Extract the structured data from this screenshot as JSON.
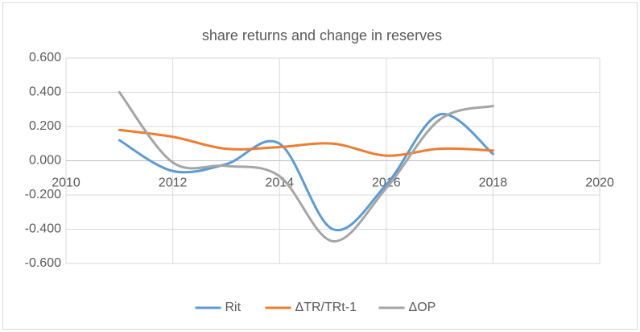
{
  "chart_data": {
    "type": "line",
    "title": "share returns and change in reserves",
    "x": [
      2011,
      2012,
      2013,
      2014,
      2015,
      2016,
      2017,
      2018
    ],
    "series": [
      {
        "name": "Rit",
        "color": "#5b9bd5",
        "values": [
          0.12,
          -0.06,
          -0.02,
          0.1,
          -0.4,
          -0.14,
          0.27,
          0.04
        ]
      },
      {
        "name": "ΔTR/TRt-1",
        "color": "#ed7d31",
        "values": [
          0.18,
          0.14,
          0.07,
          0.08,
          0.1,
          0.03,
          0.07,
          0.06
        ]
      },
      {
        "name": "ΔOP",
        "color": "#a5a5a5",
        "values": [
          0.4,
          -0.01,
          -0.03,
          -0.09,
          -0.47,
          -0.16,
          0.24,
          0.32
        ]
      }
    ],
    "xlim": [
      2010,
      2020
    ],
    "xticks": [
      2010,
      2012,
      2014,
      2016,
      2018,
      2020
    ],
    "ylim": [
      -0.6,
      0.6
    ],
    "yticks": [
      {
        "value": -0.6,
        "label": "-0.600"
      },
      {
        "value": -0.4,
        "label": "-0.400"
      },
      {
        "value": -0.2,
        "label": "-0.200"
      },
      {
        "value": 0,
        "label": "0.000"
      },
      {
        "value": 0.2,
        "label": "0.200"
      },
      {
        "value": 0.4,
        "label": "0.400"
      },
      {
        "value": 0.6,
        "label": "0.600"
      }
    ],
    "grid": true,
    "smooth": true,
    "legend": "bottom"
  }
}
